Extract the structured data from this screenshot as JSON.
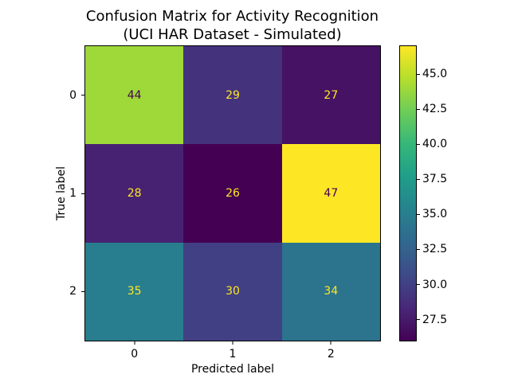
{
  "figure": {
    "title_line1": "Confusion Matrix for Activity Recognition",
    "title_line2": "(UCI HAR Dataset - Simulated)"
  },
  "chart_data": {
    "type": "heatmap",
    "title": "Confusion Matrix for Activity Recognition (UCI HAR Dataset - Simulated)",
    "xlabel": "Predicted label",
    "ylabel": "True label",
    "x_tick_labels": [
      "0",
      "1",
      "2"
    ],
    "y_tick_labels": [
      "0",
      "1",
      "2"
    ],
    "matrix": [
      [
        44,
        29,
        27
      ],
      [
        28,
        26,
        47
      ],
      [
        35,
        30,
        34
      ]
    ],
    "vmin": 26,
    "vmax": 47,
    "colormap": "viridis",
    "grid": false,
    "legend_position": "right-colorbar",
    "colorbar_ticks": [
      27.5,
      30.0,
      32.5,
      35.0,
      37.5,
      40.0,
      42.5,
      45.0
    ],
    "cell_colors": [
      [
        "#9fd939",
        "#45327d",
        "#461263"
      ],
      [
        "#472273",
        "#440154",
        "#fde725"
      ],
      [
        "#287e8e",
        "#414084",
        "#2c738e"
      ]
    ],
    "cell_text_colors": [
      [
        "#440154",
        "#fde725",
        "#fde725"
      ],
      [
        "#fde725",
        "#fde725",
        "#440154"
      ],
      [
        "#fde725",
        "#fde725",
        "#fde725"
      ]
    ],
    "colorbar_gradient": [
      "#440154",
      "#482878",
      "#3e4a89",
      "#31688e",
      "#26828e",
      "#1f9e89",
      "#35b779",
      "#6dcd59",
      "#b4de2c",
      "#fde725"
    ]
  }
}
